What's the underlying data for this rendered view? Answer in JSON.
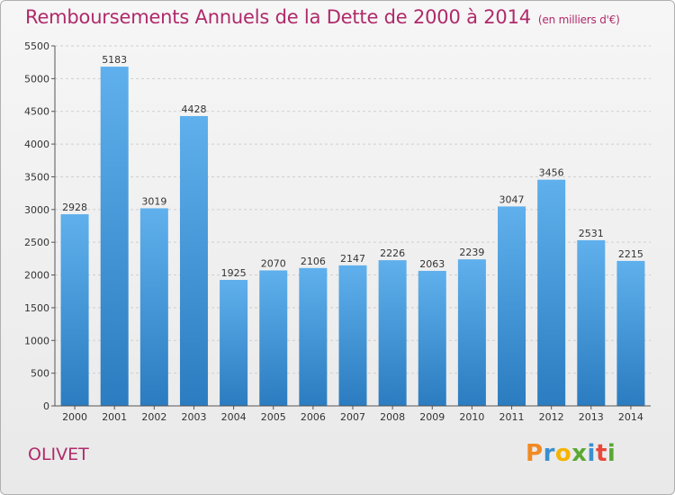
{
  "chart_data": {
    "type": "bar",
    "title": "Remboursements Annuels de la Dette de 2000 à 2014",
    "subtitle": "(en milliers d'€)",
    "xlabel": "",
    "ylabel": "",
    "categories": [
      "2000",
      "2001",
      "2002",
      "2003",
      "2004",
      "2005",
      "2006",
      "2007",
      "2008",
      "2009",
      "2010",
      "2011",
      "2012",
      "2013",
      "2014"
    ],
    "values": [
      2928,
      5183,
      3019,
      4428,
      1925,
      2070,
      2106,
      2147,
      2226,
      2063,
      2239,
      3047,
      3456,
      2531,
      2215
    ],
    "ylim": [
      0,
      5500
    ],
    "yticks": [
      0,
      500,
      1000,
      1500,
      2000,
      2500,
      3000,
      3500,
      4000,
      4500,
      5000,
      5500
    ],
    "grid": true,
    "legend": "none"
  },
  "footer": {
    "commune": "OLIVET",
    "logo": [
      "P",
      "r",
      "o",
      "x",
      "i",
      "t",
      "i"
    ]
  },
  "colors": {
    "title": "#b02a6b",
    "bar_top": "#5fb0ec",
    "bar_bottom": "#2b7cc0"
  }
}
